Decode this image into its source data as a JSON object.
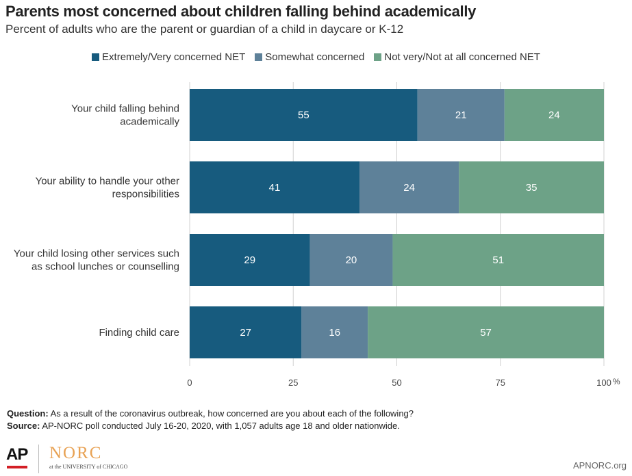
{
  "title": "Parents most concerned about children falling behind academically",
  "subtitle": "Percent of adults who are the parent or guardian of a child in daycare or K-12",
  "legend": [
    {
      "label": "Extremely/Very concerned NET",
      "color": "#175b7e"
    },
    {
      "label": "Somewhat concerned",
      "color": "#5e8199"
    },
    {
      "label": "Not very/Not at all concerned NET",
      "color": "#6da287"
    }
  ],
  "chart_data": {
    "type": "bar",
    "orientation": "horizontal",
    "stacked": true,
    "categories": [
      [
        "Your child falling behind",
        "academically"
      ],
      [
        "Your ability to handle your other",
        "responsibilities"
      ],
      [
        "Your child losing other services such",
        "as school lunches or counselling"
      ],
      [
        "Finding child care"
      ]
    ],
    "series": [
      {
        "name": "Extremely/Very concerned NET",
        "values": [
          55,
          41,
          29,
          27
        ],
        "color": "#175b7e"
      },
      {
        "name": "Somewhat concerned",
        "values": [
          21,
          24,
          20,
          16
        ],
        "color": "#5e8199"
      },
      {
        "name": "Not very/Not at all concerned NET",
        "values": [
          24,
          35,
          51,
          57
        ],
        "color": "#6da287"
      }
    ],
    "xlim": [
      0,
      100
    ],
    "xticks": [
      "0",
      "25",
      "50",
      "75",
      "100"
    ],
    "x_unit": "%",
    "grid": true
  },
  "footer": {
    "question_label": "Question:",
    "question_text": "As a result of the coronavirus outbreak, how concerned are you about each of the following?",
    "source_label": "Source:",
    "source_text": "AP-NORC poll conducted July 16-20, 2020, with 1,057 adults age 18 and older nationwide."
  },
  "logos": {
    "ap": "AP",
    "norc": "NORC",
    "norc_sub": "at the UNIVERSITY of CHICAGO"
  },
  "site": "APNORC.org"
}
